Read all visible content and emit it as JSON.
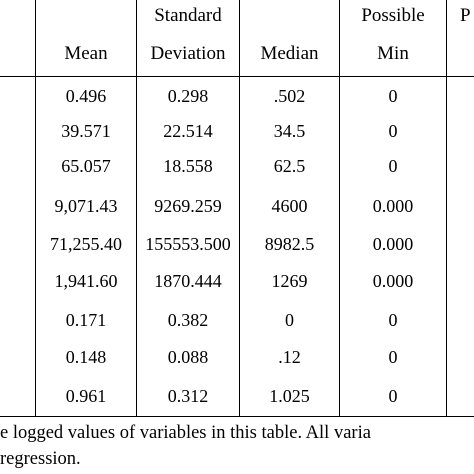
{
  "table": {
    "headers": {
      "mean": "Mean",
      "sd_line1": "Standard",
      "sd_line2": "Deviation",
      "median": "Median",
      "min_line1": "Possible",
      "min_line2": "Min",
      "next_partial": "P"
    },
    "rows": [
      {
        "mean": "0.496",
        "sd": "0.298",
        "median": ".502",
        "min": "0"
      },
      {
        "mean": "39.571",
        "sd": "22.514",
        "median": "34.5",
        "min": "0"
      },
      {
        "mean": "65.057",
        "sd": "18.558",
        "median": "62.5",
        "min": "0"
      },
      {
        "mean": "9,071.43",
        "sd": "9269.259",
        "median": "4600",
        "min": "0.000"
      },
      {
        "mean": "71,255.40",
        "sd": "155553.500",
        "median": "8982.5",
        "min": "0.000"
      },
      {
        "mean": "1,941.60",
        "sd": "1870.444",
        "median": "1269",
        "min": "0.000"
      },
      {
        "mean": "0.171",
        "sd": "0.382",
        "median": "0",
        "min": "0"
      },
      {
        "mean": "0.148",
        "sd": "0.088",
        "median": ".12",
        "min": "0"
      },
      {
        "mean": "0.961",
        "sd": "0.312",
        "median": "1.025",
        "min": "0"
      }
    ]
  },
  "footnote": {
    "line1": "e logged values of variables in this table. All varia",
    "line2": "regression."
  }
}
